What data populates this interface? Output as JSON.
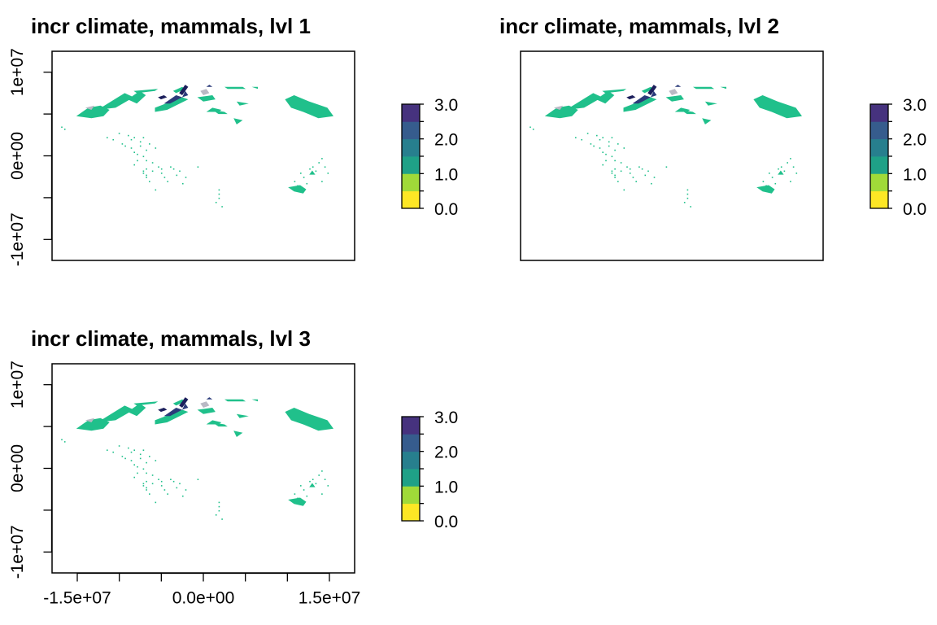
{
  "page": {
    "panel_count": 3
  },
  "chart_data": [
    {
      "type": "heatmap",
      "title": "incr climate, mammals, lvl 1",
      "xlabel": "",
      "ylabel": "",
      "xlim": [
        -18000000,
        18000000
      ],
      "ylim": [
        -12500000,
        12500000
      ],
      "x_axis_shown": false,
      "y_axis_shown": true,
      "y_ticks": [
        10000000,
        5000000,
        0,
        -5000000,
        -10000000
      ],
      "y_tick_labels": [
        "1e+07",
        "",
        "0e+00",
        "",
        "-1e+07"
      ],
      "legend": {
        "placement": "right",
        "min": 0,
        "max": 3,
        "tick_labels": [
          "3.0",
          "2.0",
          "1.0",
          "0.0"
        ]
      },
      "colorscale": "viridis (reversed)",
      "no_data_color": "#b3b3b3",
      "grid": false
    },
    {
      "type": "heatmap",
      "title": "incr climate, mammals, lvl 2",
      "xlabel": "",
      "ylabel": "",
      "xlim": [
        -18000000,
        18000000
      ],
      "ylim": [
        -12500000,
        12500000
      ],
      "x_axis_shown": false,
      "y_axis_shown": false,
      "legend": {
        "placement": "right",
        "min": 0,
        "max": 3,
        "tick_labels": [
          "3.0",
          "2.0",
          "1.0",
          "0.0"
        ]
      },
      "colorscale": "viridis (reversed)",
      "no_data_color": "#b3b3b3",
      "grid": false
    },
    {
      "type": "heatmap",
      "title": "incr climate, mammals, lvl 3",
      "xlabel": "",
      "ylabel": "",
      "xlim": [
        -18000000,
        18000000
      ],
      "ylim": [
        -12500000,
        12500000
      ],
      "x_axis_shown": true,
      "y_axis_shown": true,
      "x_ticks": [
        -15000000,
        -10000000,
        -5000000,
        0,
        5000000,
        10000000,
        15000000
      ],
      "x_tick_labels": [
        "-1.5e+07",
        "",
        "",
        "0.0e+00",
        "",
        "",
        "1.5e+07"
      ],
      "y_ticks": [
        10000000,
        5000000,
        0,
        -5000000,
        -10000000
      ],
      "y_tick_labels": [
        "1e+07",
        "",
        "0e+00",
        "",
        "-1e+07"
      ],
      "legend": {
        "placement": "right",
        "min": 0,
        "max": 3,
        "tick_labels": [
          "3.0",
          "2.0",
          "1.0",
          "0.0"
        ]
      },
      "colorscale": "viridis (reversed)",
      "no_data_color": "#b3b3b3",
      "grid": false
    }
  ],
  "colors": {
    "v0": "#fde725",
    "v0_5": "#a0da39",
    "v1": "#1fa187",
    "v1_5": "#277f8e",
    "v2": "#365c8d",
    "v2_5": "#46327e",
    "v3": "#440154",
    "main_fill": "#20c08b",
    "dark_fill": "#2b3b7a",
    "navy_fill": "#1c1f5c",
    "no_data": "#b9b9c4"
  }
}
